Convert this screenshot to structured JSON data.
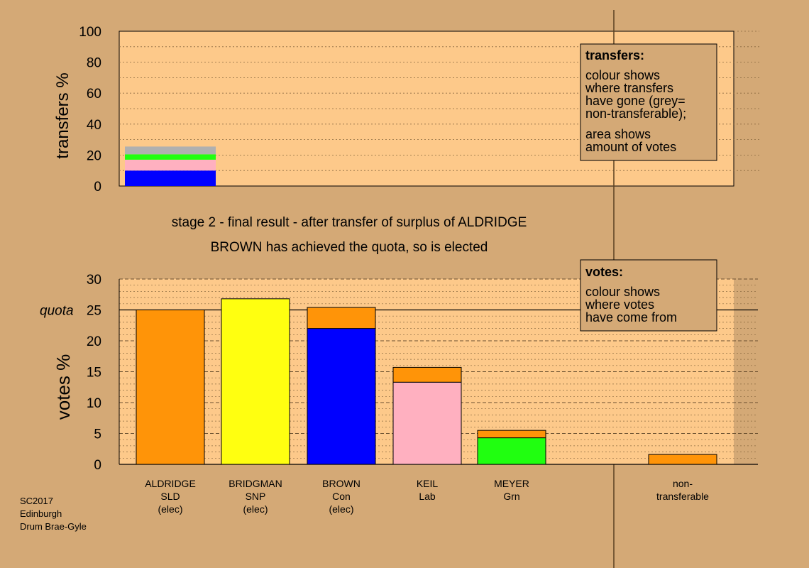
{
  "colors": {
    "background": "#d4a976",
    "plot_background": "#fdc98a",
    "SLD": "#ff9408",
    "SNP": "#ffff10",
    "Con": "#0000ff",
    "Lab": "#ffb0c0",
    "Grn": "#20ff10",
    "nontransferable": "#b0b0b0"
  },
  "chart_data": [
    {
      "type": "bar",
      "stacked": true,
      "ylabel": "transfers %",
      "ylim": [
        0,
        100
      ],
      "yticks": [
        0,
        20,
        40,
        60,
        80,
        100
      ],
      "stack": [
        {
          "party": "Con",
          "value": 10.0
        },
        {
          "party": "Lab",
          "value": 7.0
        },
        {
          "party": "Grn",
          "value": 3.5
        },
        {
          "party": "nontransferable",
          "value": 5.0
        }
      ],
      "legend": {
        "title": "transfers:",
        "lines": [
          "colour shows",
          "where transfers",
          "have gone (grey=",
          "non-transferable);"
        ],
        "lines2": [
          "area shows",
          "amount of votes"
        ]
      }
    },
    {
      "type": "bar",
      "stacked": true,
      "ylabel": "votes %",
      "ylim": [
        0,
        30
      ],
      "yticks": [
        0,
        5,
        10,
        15,
        20,
        25,
        30
      ],
      "quota": {
        "label": "quota",
        "value": 25
      },
      "categories": [
        {
          "line1": "ALDRIDGE",
          "line2": "SLD",
          "line3": "(elec)",
          "segments": [
            {
              "party": "SLD",
              "value": 25.0
            }
          ]
        },
        {
          "line1": "BRIDGMAN",
          "line2": "SNP",
          "line3": "(elec)",
          "segments": [
            {
              "party": "SNP",
              "value": 26.8
            }
          ]
        },
        {
          "line1": "BROWN",
          "line2": "Con",
          "line3": "(elec)",
          "segments": [
            {
              "party": "Con",
              "value": 22.0
            },
            {
              "party": "SLD",
              "value": 3.4
            }
          ]
        },
        {
          "line1": "KEIL",
          "line2": "Lab",
          "line3": "",
          "segments": [
            {
              "party": "Lab",
              "value": 13.3
            },
            {
              "party": "SLD",
              "value": 2.4
            }
          ]
        },
        {
          "line1": "MEYER",
          "line2": "Grn",
          "line3": "",
          "segments": [
            {
              "party": "Grn",
              "value": 4.3
            },
            {
              "party": "SLD",
              "value": 1.2
            }
          ]
        },
        {
          "line1": "non-",
          "line2": "transferable",
          "line3": "",
          "segments": [
            {
              "party": "SLD",
              "value": 1.6
            }
          ]
        }
      ],
      "legend": {
        "title": "votes:",
        "lines": [
          "colour shows",
          "where votes",
          "have come from"
        ]
      }
    }
  ],
  "captions": {
    "stage": "stage 2 - final result - after transfer of surplus of ALDRIDGE",
    "result": "BROWN has achieved the quota, so is elected"
  },
  "footer": {
    "line1": "SC2017",
    "line2": "Edinburgh",
    "line3": "Drum Brae-Gyle"
  }
}
